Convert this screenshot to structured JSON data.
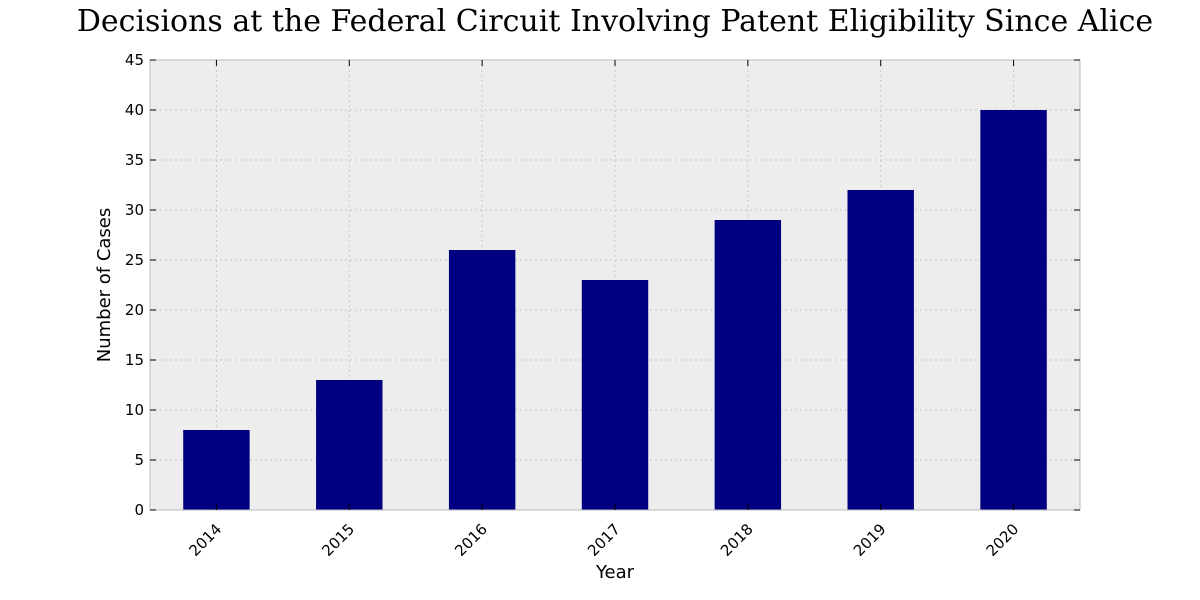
{
  "colors": {
    "bar": "#000080",
    "plot_background": "#ededed",
    "grid": "#c8c8c8",
    "frame": "#bcbcbc"
  },
  "chart_data": {
    "type": "bar",
    "title": "Decisions at the Federal Circuit Involving Patent Eligibility Since Alice",
    "xlabel": "Year",
    "ylabel": "Number of Cases",
    "categories": [
      "2014",
      "2015",
      "2016",
      "2017",
      "2018",
      "2019",
      "2020"
    ],
    "values": [
      8,
      13,
      26,
      23,
      29,
      32,
      40
    ],
    "ylim": [
      0,
      45
    ],
    "yticks": [
      0,
      5,
      10,
      15,
      20,
      25,
      30,
      35,
      40,
      45
    ],
    "grid": true,
    "legend": false
  }
}
